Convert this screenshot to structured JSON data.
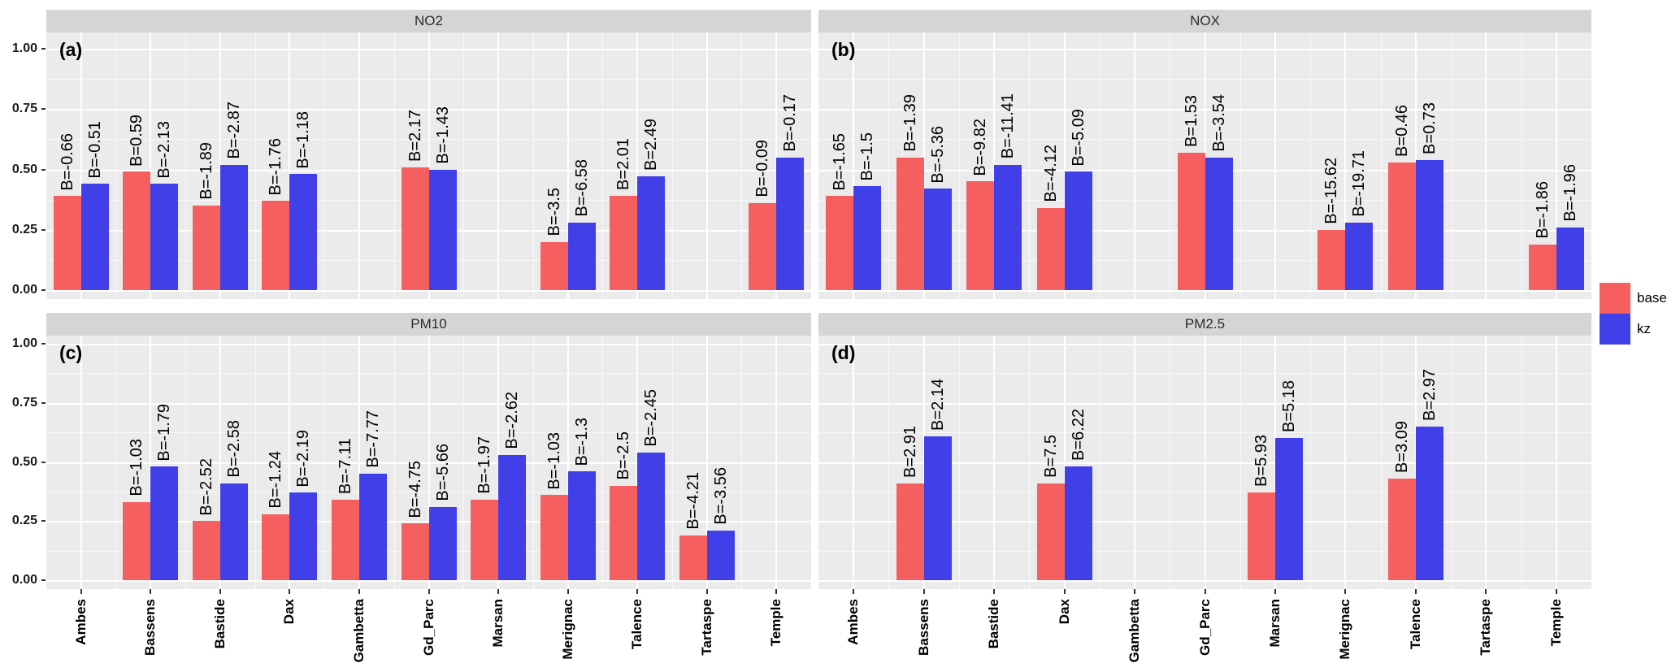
{
  "figure": {
    "background": "#ffffff",
    "panel_bg": "#ebebeb",
    "strip_bg": "#d5d5d5",
    "grid_color": "#ffffff",
    "colors": {
      "base": "#f65f5f",
      "kz": "#4140e8"
    },
    "y_ticks": [
      "1.00",
      "0.75",
      "0.50",
      "0.25",
      "0.00"
    ],
    "y_tick_values": [
      1.0,
      0.75,
      0.5,
      0.25,
      0.0
    ],
    "stations": [
      "Ambes",
      "Bassens",
      "Bastide",
      "Dax",
      "Gambetta",
      "Gd_Parc",
      "Marsan",
      "Merignac",
      "Talence",
      "Tartaspe",
      "Temple"
    ],
    "legend": {
      "position": "right",
      "items": [
        {
          "label": "base",
          "color": "#f65f5f"
        },
        {
          "label": "kz",
          "color": "#4140e8"
        }
      ]
    }
  },
  "chart_data": [
    {
      "type": "bar",
      "panel_letter": "(a)",
      "title": "NO2",
      "xlabel": "",
      "ylabel": "",
      "ylim": [
        0,
        1
      ],
      "grid": true,
      "legend_position": "right",
      "categories": [
        "Ambes",
        "Bassens",
        "Bastide",
        "Dax",
        "Gambetta",
        "Gd_Parc",
        "Marsan",
        "Merignac",
        "Talence",
        "Tartaspe",
        "Temple"
      ],
      "series": [
        {
          "name": "base",
          "values": [
            0.39,
            0.49,
            0.35,
            0.37,
            null,
            0.51,
            null,
            0.2,
            0.39,
            null,
            0.36
          ],
          "bar_labels": [
            "B=-0.66",
            "B=0.59",
            "B=-1.89",
            "B=-1.76",
            null,
            "B=2.17",
            null,
            "B=-3.5",
            "B=2.01",
            null,
            "B=-0.09"
          ]
        },
        {
          "name": "kz",
          "values": [
            0.44,
            0.44,
            0.52,
            0.48,
            null,
            0.5,
            null,
            0.28,
            0.47,
            null,
            0.55
          ],
          "bar_labels": [
            "B=-0.51",
            "B=-2.13",
            "B=-2.87",
            "B=-1.18",
            null,
            "B=-1.43",
            null,
            "B=-6.58",
            "B=2.49",
            null,
            "B=-0.17"
          ]
        }
      ]
    },
    {
      "type": "bar",
      "panel_letter": "(b)",
      "title": "NOX",
      "xlabel": "",
      "ylabel": "",
      "ylim": [
        0,
        1
      ],
      "grid": true,
      "legend_position": "right",
      "categories": [
        "Ambes",
        "Bassens",
        "Bastide",
        "Dax",
        "Gambetta",
        "Gd_Parc",
        "Marsan",
        "Merignac",
        "Talence",
        "Tartaspe",
        "Temple"
      ],
      "series": [
        {
          "name": "base",
          "values": [
            0.39,
            0.55,
            0.45,
            0.34,
            null,
            0.57,
            null,
            0.25,
            0.53,
            null,
            0.19
          ],
          "bar_labels": [
            "B=-1.65",
            "B=-1.39",
            "B=-9.82",
            "B=-4.12",
            null,
            "B=1.53",
            null,
            "B=-15.62",
            "B=0.46",
            null,
            "B=-1.86"
          ]
        },
        {
          "name": "kz",
          "values": [
            0.43,
            0.42,
            0.52,
            0.49,
            null,
            0.55,
            null,
            0.28,
            0.54,
            null,
            0.26
          ],
          "bar_labels": [
            "B=-1.5",
            "B=-5.36",
            "B=-11.41",
            "B=-5.09",
            null,
            "B=-3.54",
            null,
            "B=-19.71",
            "B=0.73",
            null,
            "B=-1.96"
          ]
        }
      ]
    },
    {
      "type": "bar",
      "panel_letter": "(c)",
      "title": "PM10",
      "xlabel": "",
      "ylabel": "",
      "ylim": [
        0,
        1
      ],
      "grid": true,
      "legend_position": "right",
      "categories": [
        "Ambes",
        "Bassens",
        "Bastide",
        "Dax",
        "Gambetta",
        "Gd_Parc",
        "Marsan",
        "Merignac",
        "Talence",
        "Tartaspe",
        "Temple"
      ],
      "series": [
        {
          "name": "base",
          "values": [
            null,
            0.33,
            0.25,
            0.28,
            0.34,
            0.24,
            0.34,
            0.36,
            0.4,
            0.19,
            null
          ],
          "bar_labels": [
            null,
            "B=-1.03",
            "B=-2.52",
            "B=-1.24",
            "B=-7.11",
            "B=-4.75",
            "B=-1.97",
            "B=-1.03",
            "B=-2.5",
            "B=-4.21",
            null
          ]
        },
        {
          "name": "kz",
          "values": [
            null,
            0.48,
            0.41,
            0.37,
            0.45,
            0.31,
            0.53,
            0.46,
            0.54,
            0.21,
            null
          ],
          "bar_labels": [
            null,
            "B=-1.79",
            "B=-2.58",
            "B=-2.19",
            "B=-7.77",
            "B=-5.66",
            "B=-2.62",
            "B=-1.3",
            "B=-2.45",
            "B=-3.56",
            null
          ]
        }
      ]
    },
    {
      "type": "bar",
      "panel_letter": "(d)",
      "title": "PM2.5",
      "xlabel": "",
      "ylabel": "",
      "ylim": [
        0,
        1
      ],
      "grid": true,
      "legend_position": "right",
      "categories": [
        "Ambes",
        "Bassens",
        "Bastide",
        "Dax",
        "Gambetta",
        "Gd_Parc",
        "Marsan",
        "Merignac",
        "Talence",
        "Tartaspe",
        "Temple"
      ],
      "series": [
        {
          "name": "base",
          "values": [
            null,
            0.41,
            null,
            0.41,
            null,
            null,
            0.37,
            null,
            0.43,
            null,
            null
          ],
          "bar_labels": [
            null,
            "B=2.91",
            null,
            "B=7.5",
            null,
            null,
            "B=5.93",
            null,
            "B=3.09",
            null,
            null
          ]
        },
        {
          "name": "kz",
          "values": [
            null,
            0.61,
            null,
            0.48,
            null,
            null,
            0.6,
            null,
            0.65,
            null,
            null
          ],
          "bar_labels": [
            null,
            "B=2.14",
            null,
            "B=6.22",
            null,
            null,
            "B=5.18",
            null,
            "B=2.97",
            null,
            null
          ]
        }
      ]
    }
  ]
}
